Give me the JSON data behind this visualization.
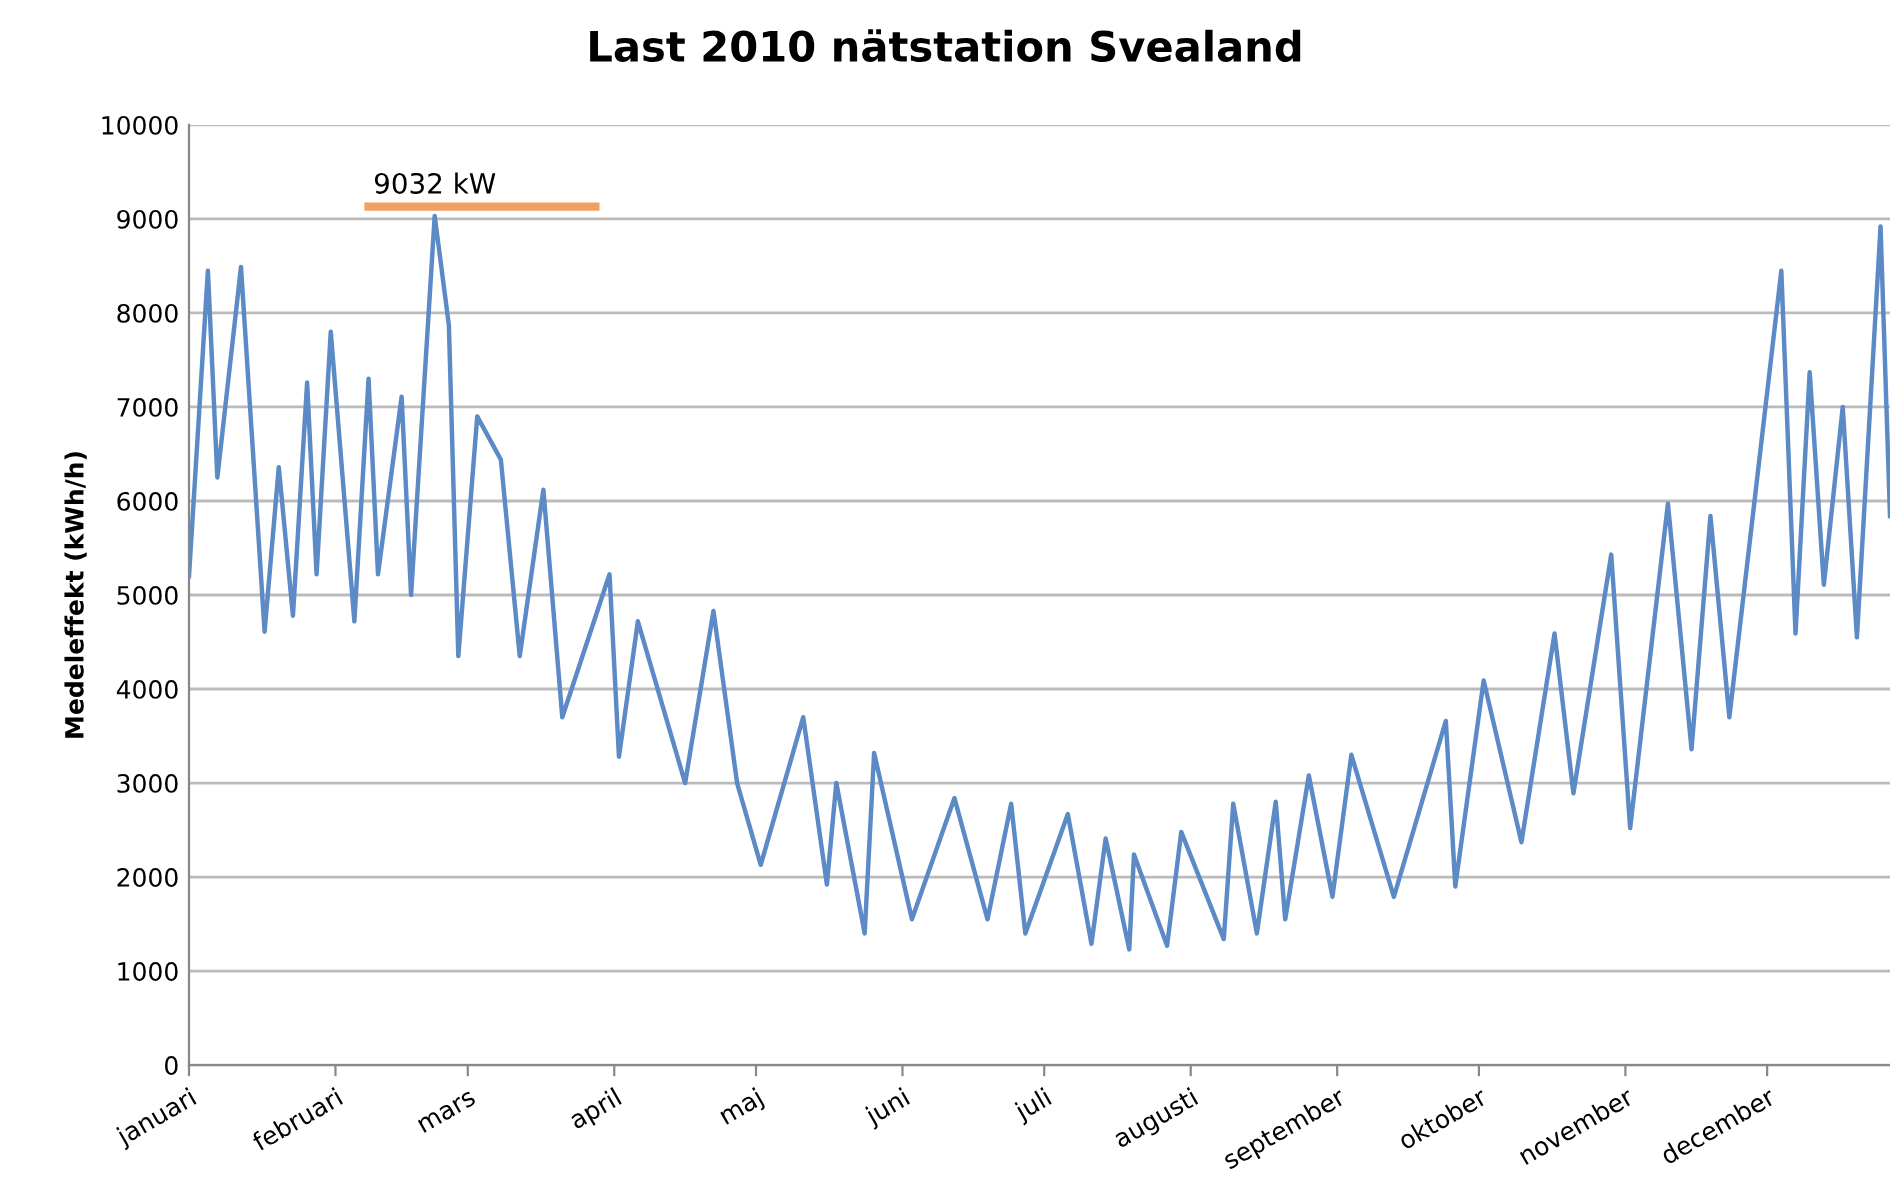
{
  "chart_data": {
    "type": "line",
    "title": "Last 2010 nätstation Svealand",
    "ylabel": "Medeleffekt (kWh/h)",
    "x": [
      "2010-01-01",
      "2010-01-05",
      "2010-01-07",
      "2010-01-12",
      "2010-01-17",
      "2010-01-20",
      "2010-01-23",
      "2010-01-26",
      "2010-01-28",
      "2010-01-31",
      "2010-02-05",
      "2010-02-08",
      "2010-02-10",
      "2010-02-15",
      "2010-02-17",
      "2010-02-22",
      "2010-02-25",
      "2010-02-27",
      "2010-03-03",
      "2010-03-08",
      "2010-03-12",
      "2010-03-17",
      "2010-03-21",
      "2010-03-31",
      "2010-04-02",
      "2010-04-06",
      "2010-04-16",
      "2010-04-22",
      "2010-04-27",
      "2010-05-02",
      "2010-05-11",
      "2010-05-16",
      "2010-05-18",
      "2010-05-24",
      "2010-05-26",
      "2010-06-03",
      "2010-06-12",
      "2010-06-19",
      "2010-06-24",
      "2010-06-27",
      "2010-07-06",
      "2010-07-11",
      "2010-07-14",
      "2010-07-19",
      "2010-07-20",
      "2010-07-27",
      "2010-07-30",
      "2010-08-08",
      "2010-08-10",
      "2010-08-15",
      "2010-08-19",
      "2010-08-21",
      "2010-08-26",
      "2010-08-31",
      "2010-09-04",
      "2010-09-13",
      "2010-09-24",
      "2010-09-26",
      "2010-10-02",
      "2010-10-10",
      "2010-10-17",
      "2010-10-21",
      "2010-10-29",
      "2010-11-02",
      "2010-11-10",
      "2010-11-15",
      "2010-11-19",
      "2010-11-23",
      "2010-12-04",
      "2010-12-07",
      "2010-12-10",
      "2010-12-13",
      "2010-12-17",
      "2010-12-20",
      "2010-12-25",
      "2010-12-27"
    ],
    "series": [
      {
        "color": "#5b8ac6",
        "values": [
          5200,
          8450,
          6250,
          8490,
          4610,
          6360,
          4780,
          7260,
          5220,
          7800,
          4720,
          7300,
          5220,
          7110,
          5000,
          9032,
          7870,
          4350,
          6900,
          6440,
          4350,
          6120,
          3700,
          5220,
          3280,
          4720,
          3000,
          4830,
          3000,
          2130,
          3700,
          1920,
          3000,
          1400,
          3320,
          1550,
          2840,
          1550,
          2780,
          1400,
          2670,
          1290,
          2410,
          1230,
          2240,
          1270,
          2480,
          1340,
          2780,
          1400,
          2800,
          1550,
          3080,
          1790,
          3300,
          1790,
          3660,
          1900,
          4090,
          2370,
          4590,
          2890,
          5430,
          2520,
          5970,
          3360,
          5840,
          3700,
          8450,
          4590,
          7370,
          5110,
          7000,
          4550,
          8920,
          5840
        ]
      }
    ],
    "annotations": [
      {
        "text": "9032 kW",
        "x": "2010-02-22",
        "y": 9032
      }
    ],
    "xlim": [
      "2010-01-01",
      "2010-12-27"
    ],
    "xticks": [
      {
        "value": "2010-01-01",
        "label": "januari"
      },
      {
        "value": "2010-02-01",
        "label": "februari"
      },
      {
        "value": "2010-03-01",
        "label": "mars"
      },
      {
        "value": "2010-04-01",
        "label": "april"
      },
      {
        "value": "2010-05-01",
        "label": "maj"
      },
      {
        "value": "2010-06-01",
        "label": "juni"
      },
      {
        "value": "2010-07-01",
        "label": "juli"
      },
      {
        "value": "2010-08-01",
        "label": "augusti"
      },
      {
        "value": "2010-09-01",
        "label": "september"
      },
      {
        "value": "2010-10-01",
        "label": "oktober"
      },
      {
        "value": "2010-11-01",
        "label": "november"
      },
      {
        "value": "2010-12-01",
        "label": "december"
      }
    ],
    "ylim": [
      0,
      10000
    ],
    "yticks": [
      0,
      1000,
      2000,
      3000,
      4000,
      5000,
      6000,
      7000,
      8000,
      9000,
      10000
    ],
    "grid": "y",
    "legend": false,
    "marker": "none",
    "line_style": "solid"
  }
}
